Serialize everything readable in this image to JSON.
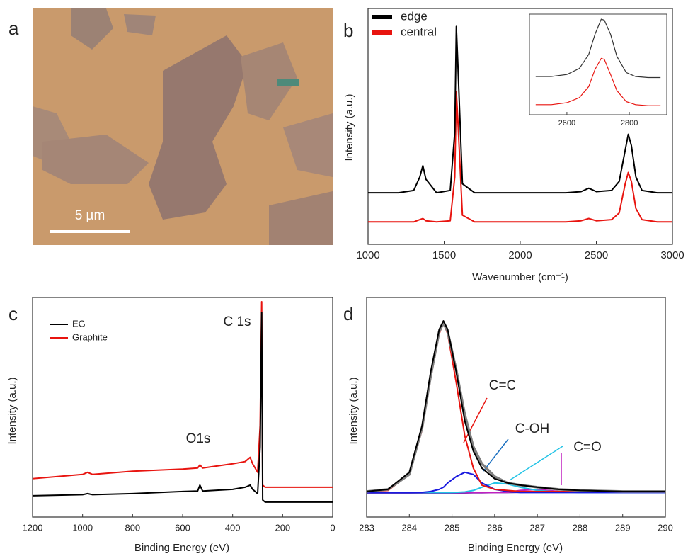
{
  "panel_labels": [
    "a",
    "b",
    "c",
    "d"
  ],
  "image": {
    "scale_bar": "5 µm"
  },
  "chart_data": [
    {
      "type": "line",
      "x_label": "Wavenumber (cm⁻¹)",
      "y_label": "Intensity (a.u.)",
      "x": [
        1000,
        1100,
        1200,
        1300,
        1340,
        1360,
        1380,
        1450,
        1540,
        1570,
        1580,
        1590,
        1620,
        1700,
        1900,
        2100,
        2300,
        2400,
        2450,
        2500,
        2600,
        2650,
        2690,
        2710,
        2730,
        2760,
        2800,
        2900,
        3000
      ],
      "series": [
        {
          "name": "edge",
          "color": "#000000",
          "values": [
            23,
            23,
            23,
            24,
            30,
            35,
            29,
            23,
            24,
            50,
            97,
            80,
            27,
            23,
            23,
            23,
            23,
            23.5,
            25,
            23.5,
            24,
            28,
            42,
            49,
            44,
            30,
            24,
            23,
            23
          ]
        },
        {
          "name": "central",
          "color": "#e8140f",
          "values": [
            10,
            10,
            10,
            10,
            11,
            11.5,
            10.5,
            10,
            10.5,
            30,
            68,
            55,
            13,
            10,
            10,
            10,
            10,
            10.5,
            11.5,
            10.5,
            11,
            14,
            27,
            32,
            28,
            16,
            11,
            10,
            10
          ]
        }
      ],
      "xlim": [
        1000,
        3000
      ],
      "xticks": [
        1000,
        1500,
        2000,
        2500,
        3000
      ],
      "ylim": [
        0,
        105
      ],
      "legend": "upper left",
      "inset": {
        "x": [
          2500,
          2550,
          2600,
          2640,
          2670,
          2690,
          2710,
          2720,
          2740,
          2760,
          2790,
          2820,
          2860,
          2900
        ],
        "series": [
          {
            "color": "#333333",
            "values": [
              38,
              38,
              40,
              46,
              60,
              80,
              95,
              94,
              80,
              58,
              42,
              38,
              37,
              37
            ]
          },
          {
            "color": "#e8140f",
            "values": [
              10,
              10,
              12,
              17,
              28,
              45,
              56,
              55,
              40,
              24,
              13,
              10,
              9,
              9
            ]
          }
        ],
        "xlim": [
          2480,
          2920
        ],
        "xticks": [
          2600,
          2800
        ],
        "ylim": [
          0,
          100
        ]
      }
    },
    {
      "type": "line",
      "x_label": "Binding Energy (eV)",
      "y_label": "Intensity (a.u.)",
      "x": [
        1200,
        1000,
        980,
        960,
        800,
        600,
        540,
        531,
        520,
        400,
        350,
        330,
        320,
        300,
        290,
        284,
        280,
        270,
        200,
        100,
        0
      ],
      "series": [
        {
          "name": "EG",
          "color": "#000000",
          "values": [
            7,
            7.5,
            8,
            7.5,
            8,
            9,
            9.2,
            12,
            9.2,
            10,
            11,
            12,
            10,
            8,
            30,
            93,
            5,
            4,
            4,
            4,
            4
          ]
        },
        {
          "name": "Graphite",
          "color": "#e8140f",
          "values": [
            15,
            17,
            18,
            17,
            18.5,
            19.5,
            20,
            21.5,
            20,
            22,
            23,
            25,
            22,
            18,
            40,
            98,
            12,
            11,
            11,
            11,
            11
          ]
        }
      ],
      "annotations": [
        "C 1s",
        "O1s"
      ],
      "xlim": [
        1200,
        0
      ],
      "xticks": [
        1200,
        1000,
        800,
        600,
        400,
        200,
        0
      ],
      "ylim": [
        -3,
        100
      ],
      "legend": "upper left"
    },
    {
      "type": "line",
      "x_label": "Binding Energy (eV)",
      "y_label": "Intensity (a.u.)",
      "x": [
        283,
        283.5,
        284,
        284.3,
        284.5,
        284.7,
        284.8,
        284.9,
        285.1,
        285.3,
        285.5,
        285.7,
        286,
        286.3,
        286.6,
        287,
        287.5,
        288,
        289,
        290
      ],
      "series": [
        {
          "color": "#000000",
          "values": [
            9,
            10,
            18,
            40,
            65,
            85,
            89,
            85,
            65,
            42,
            28,
            20,
            15,
            13,
            12,
            11,
            10,
            9.5,
            9,
            9
          ]
        },
        {
          "color": "#808080",
          "values": [
            9,
            10,
            17,
            39,
            63,
            84,
            88,
            84,
            66,
            45,
            30,
            22,
            16,
            13,
            12,
            11,
            10,
            9.5,
            9,
            9
          ]
        },
        {
          "color": "#e8140f",
          "values": [
            9,
            9.5,
            17,
            38,
            62,
            83,
            88,
            83,
            60,
            35,
            20,
            12,
            10,
            9.5,
            9,
            9,
            9,
            9,
            9,
            9
          ]
        },
        {
          "color": "#1a1adf",
          "values": [
            8.5,
            8.5,
            8.5,
            8.6,
            9,
            10,
            11,
            13,
            16,
            18,
            17,
            13,
            10,
            9,
            8.5,
            8.5,
            8.5,
            8.5,
            8.5,
            8.5
          ]
        },
        {
          "color": "#22c3e6",
          "values": [
            8.5,
            8.5,
            8.5,
            8.5,
            8.5,
            8.5,
            8.5,
            8.5,
            8.6,
            8.8,
            9.5,
            11,
            13,
            12.5,
            11,
            9.5,
            8.8,
            8.5,
            8.5,
            8.5
          ]
        },
        {
          "color": "#c020c0",
          "values": [
            8.5,
            8.5,
            8.5,
            8.5,
            8.5,
            8.5,
            8.5,
            8.5,
            8.5,
            8.5,
            8.5,
            8.5,
            8.5,
            8.6,
            9.5,
            10,
            9,
            8.5,
            8.5,
            8.5
          ]
        },
        {
          "color": "#6a2fb0",
          "values": [
            8,
            8,
            8.1,
            8.1,
            8.1,
            8.2,
            8.2,
            8.2,
            8.3,
            8.3,
            8.4,
            8.4,
            8.5,
            8.5,
            8.6,
            8.7,
            8.8,
            8.9,
            9,
            9
          ]
        }
      ],
      "annotations": [
        "C=C",
        "C-OH",
        "C=O"
      ],
      "xlim": [
        283,
        290
      ],
      "xticks": [
        283,
        284,
        285,
        286,
        287,
        288,
        289,
        290
      ],
      "ylim": [
        -3,
        100
      ]
    }
  ]
}
